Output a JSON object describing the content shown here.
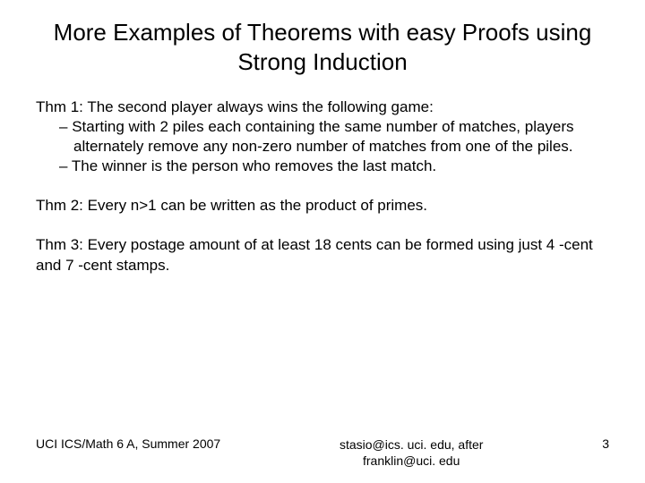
{
  "title": "More Examples of Theorems with easy   Proofs using Strong Induction",
  "thm1": {
    "lead": "Thm 1: The second player always wins the following game:",
    "sub1": "Starting with 2 piles each containing the same number of matches, players alternately remove any non-zero number of matches from one of the piles.",
    "sub2": "The winner is the person who removes the last match."
  },
  "thm2": "Thm 2: Every n>1 can be written as the product of primes.",
  "thm3": "Thm 3: Every postage amount of at least 18 cents can be formed using just 4 -cent and 7 -cent stamps.",
  "footer": {
    "left": "UCI ICS/Math 6 A, Summer 2007",
    "center_line1": "stasio@ics. uci. edu, after",
    "center_line2": "franklin@uci. edu",
    "page": "3"
  },
  "style": {
    "background_color": "#ffffff",
    "text_color": "#000000",
    "title_fontsize": 26,
    "body_fontsize": 17,
    "footer_fontsize": 14,
    "font_family": "Arial"
  }
}
